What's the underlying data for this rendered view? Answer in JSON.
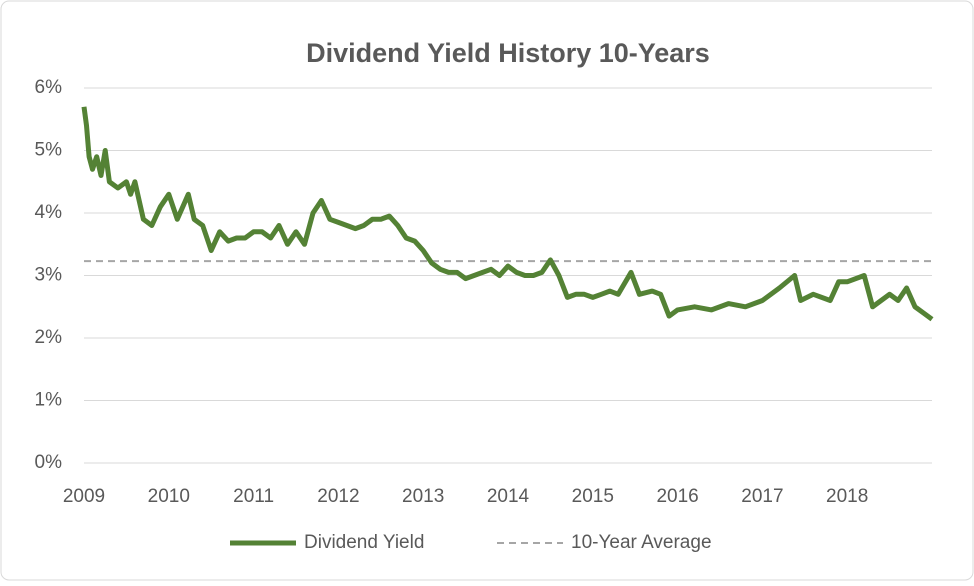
{
  "chart_data": {
    "type": "line",
    "title": "Dividend Yield History 10-Years",
    "xlim": [
      2009,
      2019
    ],
    "xticks": [
      2009,
      2010,
      2011,
      2012,
      2013,
      2014,
      2015,
      2016,
      2017,
      2018
    ],
    "ylim": [
      0,
      6
    ],
    "yticks": [
      {
        "value": 0,
        "label": "0%"
      },
      {
        "value": 1,
        "label": "1%"
      },
      {
        "value": 2,
        "label": "2%"
      },
      {
        "value": 3,
        "label": "3%"
      },
      {
        "value": 4,
        "label": "4%"
      },
      {
        "value": 5,
        "label": "5%"
      },
      {
        "value": 6,
        "label": "6%"
      }
    ],
    "grid": true,
    "legend": "bottom",
    "series": [
      {
        "name": "Dividend Yield",
        "color": "#548235",
        "dash": false,
        "x": [
          2009.0,
          2009.03,
          2009.06,
          2009.1,
          2009.15,
          2009.2,
          2009.25,
          2009.3,
          2009.4,
          2009.5,
          2009.55,
          2009.6,
          2009.7,
          2009.8,
          2009.9,
          2010.0,
          2010.1,
          2010.23,
          2010.3,
          2010.4,
          2010.5,
          2010.6,
          2010.7,
          2010.8,
          2010.9,
          2011.0,
          2011.1,
          2011.2,
          2011.3,
          2011.4,
          2011.5,
          2011.6,
          2011.7,
          2011.8,
          2011.9,
          2012.0,
          2012.1,
          2012.2,
          2012.3,
          2012.4,
          2012.5,
          2012.6,
          2012.7,
          2012.8,
          2012.9,
          2013.0,
          2013.1,
          2013.2,
          2013.3,
          2013.4,
          2013.5,
          2013.6,
          2013.7,
          2013.8,
          2013.9,
          2014.0,
          2014.1,
          2014.2,
          2014.3,
          2014.4,
          2014.5,
          2014.6,
          2014.7,
          2014.8,
          2014.9,
          2015.0,
          2015.1,
          2015.2,
          2015.3,
          2015.45,
          2015.55,
          2015.7,
          2015.8,
          2015.9,
          2016.0,
          2016.2,
          2016.4,
          2016.6,
          2016.8,
          2017.0,
          2017.2,
          2017.38,
          2017.45,
          2017.6,
          2017.8,
          2017.9,
          2018.0,
          2018.2,
          2018.3,
          2018.5,
          2018.6,
          2018.7,
          2018.8,
          2018.9,
          2019.0
        ],
        "values": [
          5.7,
          5.4,
          4.9,
          4.7,
          4.9,
          4.6,
          5.0,
          4.5,
          4.4,
          4.5,
          4.3,
          4.5,
          3.9,
          3.8,
          4.1,
          4.3,
          3.9,
          4.3,
          3.9,
          3.8,
          3.4,
          3.7,
          3.55,
          3.6,
          3.6,
          3.7,
          3.7,
          3.6,
          3.8,
          3.5,
          3.7,
          3.5,
          4.0,
          4.2,
          3.9,
          3.85,
          3.8,
          3.75,
          3.8,
          3.9,
          3.9,
          3.95,
          3.8,
          3.6,
          3.55,
          3.4,
          3.2,
          3.1,
          3.05,
          3.05,
          2.95,
          3.0,
          3.05,
          3.1,
          3.0,
          3.15,
          3.05,
          3.0,
          3.0,
          3.05,
          3.25,
          3.0,
          2.65,
          2.7,
          2.7,
          2.65,
          2.7,
          2.75,
          2.7,
          3.05,
          2.7,
          2.75,
          2.7,
          2.35,
          2.45,
          2.5,
          2.45,
          2.55,
          2.5,
          2.6,
          2.8,
          3.0,
          2.6,
          2.7,
          2.6,
          2.9,
          2.9,
          3.0,
          2.5,
          2.7,
          2.6,
          2.8,
          2.5,
          2.4,
          2.3
        ]
      },
      {
        "name": "10-Year Average",
        "color": "#a6a6a6",
        "dash": true,
        "x": [
          2009,
          2019
        ],
        "values": [
          3.23,
          3.23
        ]
      }
    ]
  }
}
